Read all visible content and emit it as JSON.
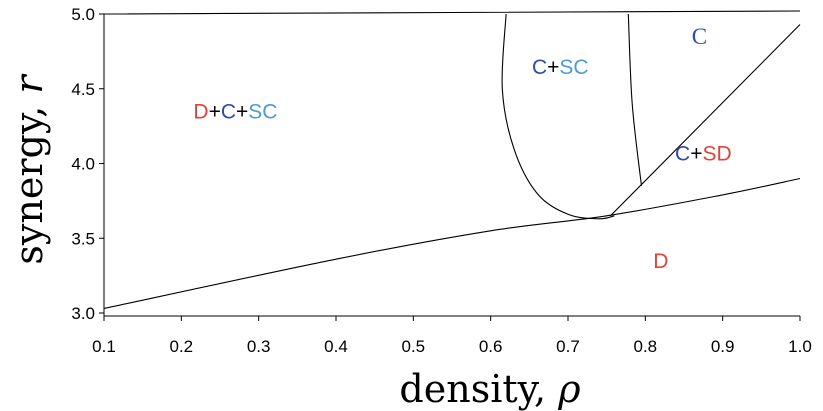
{
  "chart_data": {
    "type": "line",
    "title": "",
    "xlabel": "density, ",
    "xlabel_symbol": "ρ",
    "ylabel": "synergy, ",
    "ylabel_symbol": "r",
    "xlim": [
      0.1,
      1.0
    ],
    "ylim": [
      2.98,
      5.0
    ],
    "x_ticks": [
      "0.1",
      "0.2",
      "0.3",
      "0.4",
      "0.5",
      "0.6",
      "0.7",
      "0.8",
      "0.9",
      "1.0"
    ],
    "y_ticks": [
      "3.0",
      "3.5",
      "4.0",
      "4.5",
      "5.0"
    ],
    "colors": {
      "D": "#d9463b",
      "C": "#2f4aa8",
      "SC": "#4a9bd6",
      "SD": "#d9463b",
      "plus": "#000000",
      "line": "#000000"
    },
    "series": [
      {
        "name": "lower-boundary",
        "x": [
          0.1,
          0.4,
          0.6,
          0.75,
          0.9,
          1.0
        ],
        "y": [
          3.03,
          3.36,
          3.55,
          3.65,
          3.79,
          3.9
        ]
      },
      {
        "name": "sc-boundary-left",
        "x": [
          0.62,
          0.615,
          0.63,
          0.66,
          0.7,
          0.74,
          0.76
        ],
        "y": [
          5.0,
          4.5,
          4.1,
          3.8,
          3.66,
          3.63,
          3.65
        ]
      },
      {
        "name": "sc-boundary-right",
        "x": [
          0.778,
          0.783,
          0.795
        ],
        "y": [
          5.0,
          4.4,
          3.85
        ]
      },
      {
        "name": "sd-boundary",
        "x": [
          0.755,
          1.0
        ],
        "y": [
          3.65,
          4.93
        ]
      },
      {
        "name": "top-boundary",
        "x": [
          0.1,
          1.0
        ],
        "y": [
          5.0,
          5.02
        ]
      }
    ],
    "regions": [
      {
        "name": "region-d-c-sc",
        "x": 0.27,
        "y": 4.3,
        "parts": [
          {
            "text": "D",
            "color": "D"
          },
          {
            "text": "+",
            "color": "plus"
          },
          {
            "text": "C",
            "color": "C"
          },
          {
            "text": "+",
            "color": "plus"
          },
          {
            "text": "SC",
            "color": "SC"
          }
        ]
      },
      {
        "name": "region-c-sc",
        "x": 0.69,
        "y": 4.6,
        "parts": [
          {
            "text": "C",
            "color": "C"
          },
          {
            "text": "+",
            "color": "plus"
          },
          {
            "text": "SC",
            "color": "SC"
          }
        ]
      },
      {
        "name": "region-c",
        "x": 0.87,
        "y": 4.8,
        "parts": [
          {
            "text": "C",
            "color": "C"
          }
        ]
      },
      {
        "name": "region-c-sd",
        "x": 0.875,
        "y": 4.02,
        "parts": [
          {
            "text": "C",
            "color": "C"
          },
          {
            "text": "+",
            "color": "plus"
          },
          {
            "text": "SD",
            "color": "SD"
          }
        ]
      },
      {
        "name": "region-d",
        "x": 0.82,
        "y": 3.3,
        "parts": [
          {
            "text": "D",
            "color": "D"
          }
        ]
      }
    ]
  }
}
